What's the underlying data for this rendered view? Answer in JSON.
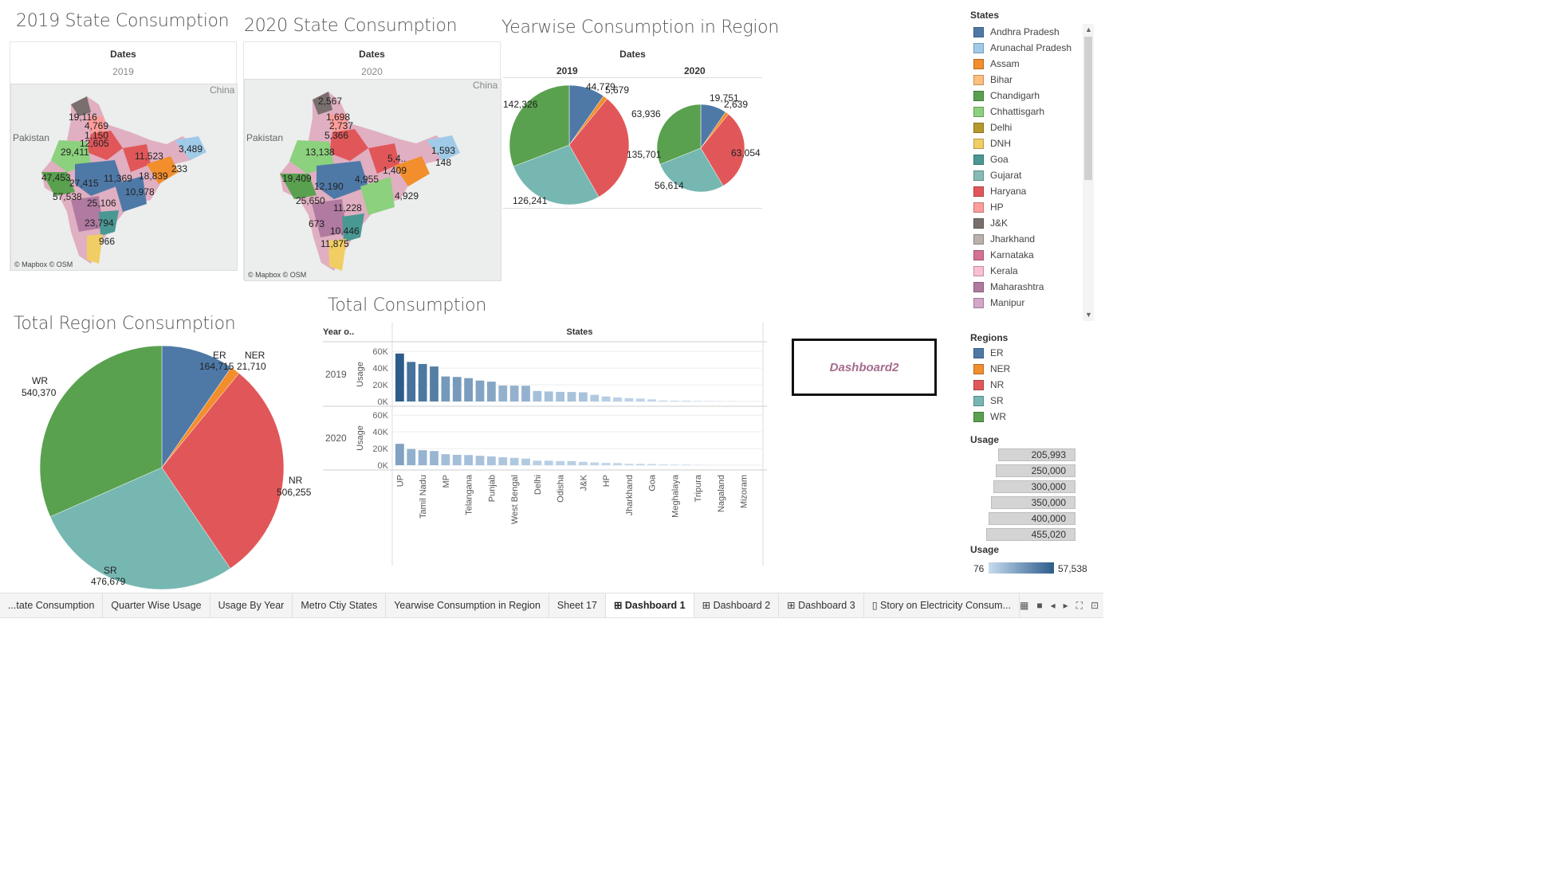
{
  "titles": {
    "state2019": "2019 State Consumption",
    "state2020": "2020 State Consumption",
    "yearwise": "Yearwise Consumption in Region",
    "totalRegion": "Total Region Consumption",
    "total": "Total Consumption"
  },
  "maps": {
    "dates_header": "Dates",
    "map2019": {
      "year": "2019",
      "countries": {
        "china": "China",
        "pakistan": "Pakistan"
      },
      "credit": "© Mapbox © OSM",
      "labels": [
        "19,116",
        "4,769",
        "1,150",
        "12,605",
        "29,411",
        "11,523",
        "3,489",
        "233",
        "47,453",
        "27,415",
        "11,369",
        "18,839",
        "10,978",
        "57,538",
        "25,106",
        "23,794",
        "966"
      ]
    },
    "map2020": {
      "year": "2020",
      "countries": {
        "china": "China",
        "pakistan": "Pakistan"
      },
      "credit": "© Mapbox © OSM",
      "labels": [
        "2,567",
        "1,698",
        "2,737",
        "5,366",
        "13,138",
        "5,4..",
        "1,593",
        "148",
        "1,409",
        "19,409",
        "12,190",
        "4,955",
        "4,929",
        "25,650",
        "11,228",
        "673",
        "10,446",
        "11,875"
      ]
    }
  },
  "yearwise": {
    "dates_header": "Dates",
    "pie2019": {
      "year": "2019",
      "labels": {
        "wr": "142,326",
        "er": "44,779",
        "ner": "5,679",
        "sr": "126,241"
      }
    },
    "pie2020": {
      "year": "2020",
      "labels": {
        "wr": "63,936",
        "er": "19,751",
        "ner": "2,639",
        "nr": "63,054",
        "sr": "56,614",
        "left": "135,701"
      }
    }
  },
  "totalRegion": {
    "labels": {
      "er_name": "ER",
      "er_val": "164,715",
      "ner_name": "NER",
      "ner_val": "21,710",
      "wr_name": "WR",
      "wr_val": "540,370",
      "nr_name": "NR",
      "nr_val": "506,255",
      "sr_name": "SR",
      "sr_val": "476,679"
    }
  },
  "chart_data": [
    {
      "type": "pie",
      "title": "Total Region Consumption",
      "slices": [
        {
          "name": "ER",
          "value": 164715,
          "color": "#4e79a7"
        },
        {
          "name": "NER",
          "value": 21710,
          "color": "#f28e2b"
        },
        {
          "name": "NR",
          "value": 506255,
          "color": "#e15759"
        },
        {
          "name": "SR",
          "value": 476679,
          "color": "#76b7b2"
        },
        {
          "name": "WR",
          "value": 540370,
          "color": "#59a14f"
        }
      ]
    },
    {
      "type": "pie",
      "title": "Yearwise Consumption in Region",
      "slices": [
        {
          "name": "ER",
          "value": 44779,
          "color": "#4e79a7"
        },
        {
          "name": "NER",
          "value": 5679,
          "color": "#f28e2b"
        },
        {
          "name": "NR",
          "value": 142326,
          "color": "#e15759"
        },
        {
          "name": "SR",
          "value": 126241,
          "color": "#76b7b2"
        },
        {
          "name": "WR",
          "value": 142326,
          "color": "#59a14f"
        }
      ]
    },
    {
      "type": "pie",
      "title": "Yearwise Consumption in Region",
      "slices": [
        {
          "name": "ER",
          "value": 19751,
          "color": "#4e79a7"
        },
        {
          "name": "NER",
          "value": 2639,
          "color": "#f28e2b"
        },
        {
          "name": "NR",
          "value": 63054,
          "color": "#e15759"
        },
        {
          "name": "SR",
          "value": 56614,
          "color": "#76b7b2"
        },
        {
          "name": "WR",
          "value": 63936,
          "color": "#59a14f"
        }
      ]
    },
    {
      "type": "bar",
      "title": "Total Consumption",
      "column_header": "States",
      "row_header": "Year o..",
      "ylabel": "Usage",
      "ylim": [
        0,
        65000
      ],
      "yticks": [
        "60K",
        "40K",
        "20K",
        "0K"
      ],
      "categories": [
        "UP",
        "",
        "Tamil Nadu",
        "",
        "MP",
        "",
        "Telangana",
        "",
        "Punjab",
        "",
        "West Bengal",
        "",
        "Delhi",
        "",
        "Odisha",
        "",
        "J&K",
        "",
        "HP",
        "",
        "Jharkhand",
        "",
        "Goa",
        "",
        "Meghalaya",
        "",
        "Tripura",
        "",
        "Nagaland",
        "",
        "Mizoram",
        ""
      ],
      "series": [
        {
          "name": "2019",
          "values": [
            57538,
            47453,
            45000,
            42000,
            30000,
            29411,
            28000,
            25106,
            23794,
            19116,
            19000,
            18839,
            12605,
            12000,
            11523,
            11369,
            10978,
            8000,
            6000,
            4769,
            4000,
            3489,
            2500,
            1150,
            1000,
            966,
            600,
            500,
            300,
            233,
            150,
            100
          ]
        },
        {
          "name": "2020",
          "values": [
            25650,
            19409,
            18000,
            17000,
            13138,
            12500,
            12190,
            11228,
            10446,
            9500,
            8800,
            7900,
            5366,
            5400,
            4955,
            4929,
            4000,
            3300,
            2737,
            2567,
            1698,
            1593,
            1409,
            900,
            700,
            673,
            400,
            300,
            200,
            148,
            100,
            76
          ]
        }
      ]
    }
  ],
  "legend": {
    "states_title": "States",
    "states": [
      {
        "name": "Andhra Pradesh",
        "color": "#4e79a7"
      },
      {
        "name": "Arunachal Pradesh",
        "color": "#a0cbe8"
      },
      {
        "name": "Assam",
        "color": "#f28e2b"
      },
      {
        "name": "Bihar",
        "color": "#ffbe7d"
      },
      {
        "name": "Chandigarh",
        "color": "#59a14f"
      },
      {
        "name": "Chhattisgarh",
        "color": "#8cd17d"
      },
      {
        "name": "Delhi",
        "color": "#b6992d"
      },
      {
        "name": "DNH",
        "color": "#f1ce63"
      },
      {
        "name": "Goa",
        "color": "#499894"
      },
      {
        "name": "Gujarat",
        "color": "#86bcb6"
      },
      {
        "name": "Haryana",
        "color": "#e15759"
      },
      {
        "name": "HP",
        "color": "#ff9d9a"
      },
      {
        "name": "J&K",
        "color": "#79706e"
      },
      {
        "name": "Jharkhand",
        "color": "#bab0ac"
      },
      {
        "name": "Karnataka",
        "color": "#d37295"
      },
      {
        "name": "Kerala",
        "color": "#fabfd2"
      },
      {
        "name": "Maharashtra",
        "color": "#b07aa1"
      },
      {
        "name": "Manipur",
        "color": "#d4a6c8"
      }
    ],
    "regions_title": "Regions",
    "regions": [
      {
        "name": "ER",
        "color": "#4e79a7"
      },
      {
        "name": "NER",
        "color": "#f28e2b"
      },
      {
        "name": "NR",
        "color": "#e15759"
      },
      {
        "name": "SR",
        "color": "#76b7b2"
      },
      {
        "name": "WR",
        "color": "#59a14f"
      }
    ],
    "usage_title": "Usage",
    "usage_sizes": [
      "205,993",
      "250,000",
      "300,000",
      "350,000",
      "400,000",
      "455,020"
    ],
    "usage_color_title": "Usage",
    "usage_color_min": "76",
    "usage_color_max": "57,538"
  },
  "dashboard_button": "Dashboard2",
  "tabs": [
    {
      "label": "...tate Consumption"
    },
    {
      "label": "Quarter Wise Usage"
    },
    {
      "label": "Usage By Year"
    },
    {
      "label": "Metro Ctiy States"
    },
    {
      "label": "Yearwise Consumption in Region"
    },
    {
      "label": "Sheet 17"
    },
    {
      "label": "Dashboard 1",
      "active": true
    },
    {
      "label": "Dashboard 2"
    },
    {
      "label": "Dashboard 3"
    },
    {
      "label": "Story on Electricity Consum..."
    }
  ]
}
